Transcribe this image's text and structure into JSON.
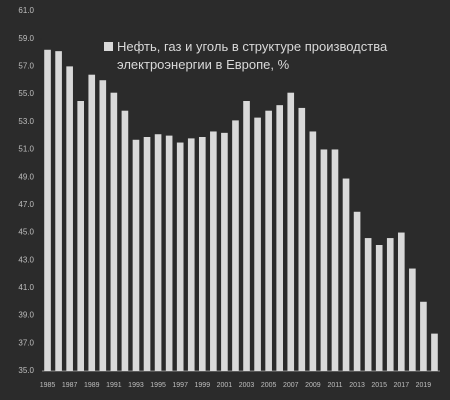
{
  "chart_data": {
    "type": "bar",
    "categories": [
      "1985",
      null,
      "1987",
      null,
      "1989",
      null,
      "1991",
      null,
      "1993",
      null,
      "1995",
      null,
      "1997",
      null,
      "1999",
      null,
      "2001",
      null,
      "2003",
      null,
      "2005",
      null,
      "2007",
      null,
      "2009",
      null,
      "2011",
      null,
      "2013",
      null,
      "2015",
      null,
      "2017",
      null,
      "2019",
      null
    ],
    "series": [
      {
        "name": "Нефть, газ и уголь в структуре производства электроэнергии в Европе, %",
        "color": "#d9d9d9",
        "values": [
          58.2,
          58.1,
          57.0,
          54.5,
          56.4,
          56.0,
          55.1,
          53.8,
          51.7,
          51.9,
          52.1,
          52.0,
          51.5,
          51.8,
          51.9,
          52.3,
          52.2,
          53.1,
          54.5,
          53.3,
          53.8,
          54.2,
          55.1,
          54.0,
          52.3,
          51.0,
          51.0,
          48.9,
          46.5,
          44.6,
          44.1,
          44.6,
          45.0,
          42.4,
          40.0,
          37.7
        ]
      }
    ],
    "ylim": [
      35,
      61
    ],
    "yticks": [
      {
        "value": 35,
        "label": "35.0"
      },
      {
        "value": 37,
        "label": "37.0"
      },
      {
        "value": 39,
        "label": "39.0"
      },
      {
        "value": 41,
        "label": "41.0"
      },
      {
        "value": 43,
        "label": "43.0"
      },
      {
        "value": 45,
        "label": "45.0"
      },
      {
        "value": 47,
        "label": "47.0"
      },
      {
        "value": 49,
        "label": "49.0"
      },
      {
        "value": 51,
        "label": "51.0"
      },
      {
        "value": 53,
        "label": "53.0"
      },
      {
        "value": 55,
        "label": "55.0"
      },
      {
        "value": 57,
        "label": "57.0"
      },
      {
        "value": 59,
        "label": "59.0"
      },
      {
        "value": 61,
        "label": "61.0"
      }
    ],
    "legend": "top-right"
  }
}
